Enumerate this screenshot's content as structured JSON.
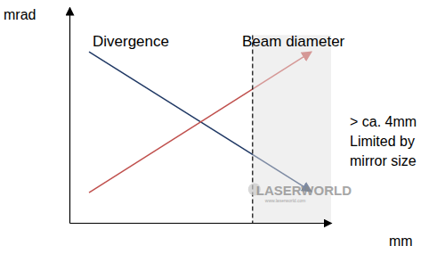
{
  "chart_data": {
    "type": "line",
    "x_label": "mm",
    "y_label": "mrad",
    "x": [
      0.75,
      9.25
    ],
    "series": [
      {
        "name": "Divergence",
        "color": "#1f3864",
        "values": [
          7.93,
          1.45
        ],
        "marker": "arrow",
        "line_style": "solid"
      },
      {
        "name": "Beam diameter",
        "color": "#c0504d",
        "values": [
          1.4,
          7.93
        ],
        "marker": "arrow",
        "line_style": "solid"
      }
    ],
    "xlim": [
      0,
      10
    ],
    "ylim": [
      0,
      10
    ],
    "xticks": [],
    "yticks": [],
    "tick_labels": false,
    "grid": false,
    "region": {
      "x": [
        7,
        10
      ],
      "y": [
        0,
        8.7
      ]
    },
    "annotations": [
      "> ca. 4mm",
      "Limited by",
      "mirror size"
    ],
    "watermark": [
      "LASERWORLD",
      "www.laserworld.com"
    ]
  }
}
